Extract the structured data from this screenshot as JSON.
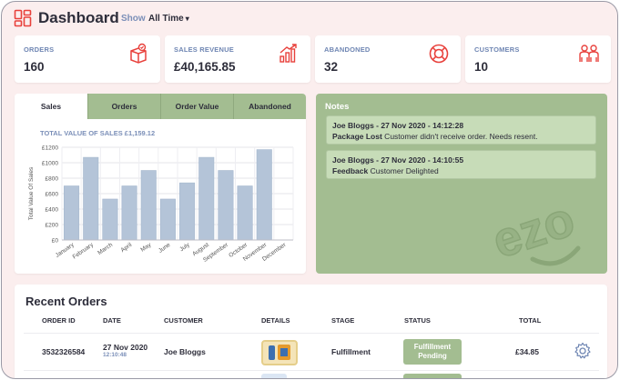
{
  "header": {
    "title": "Dashboard",
    "show_label": "Show",
    "show_value": "All Time",
    "caret": "▾",
    "logo_icon": "dashboard-grid-icon"
  },
  "stats": [
    {
      "label": "ORDERS",
      "value": "160",
      "icon": "shopping-bag-check-icon"
    },
    {
      "label": "SALES REVENUE",
      "value": "£40,165.85",
      "icon": "growth-bar-chart-icon"
    },
    {
      "label": "ABANDONED",
      "value": "32",
      "icon": "lifebuoy-icon"
    },
    {
      "label": "CUSTOMERS",
      "value": "10",
      "icon": "customers-group-icon"
    }
  ],
  "sales_tabs": [
    "Sales",
    "Orders",
    "Order Value",
    "Abandoned"
  ],
  "chart_data": {
    "type": "bar",
    "title": "TOTAL VALUE OF SALES £1,159.12",
    "ylabel": "Total Value Of Sales",
    "xlabel": "",
    "categories": [
      "January",
      "February",
      "March",
      "April",
      "May",
      "June",
      "July",
      "August",
      "September",
      "October",
      "November",
      "December"
    ],
    "values": [
      700,
      1070,
      530,
      700,
      900,
      530,
      740,
      1070,
      900,
      700,
      1170,
      0
    ],
    "yticks": [
      "£0",
      "£200",
      "£400",
      "£600",
      "£800",
      "£1000",
      "£1200"
    ],
    "ylim": [
      0,
      1200
    ],
    "grid": true,
    "bar_color": "#b4c4d8"
  },
  "notes": {
    "title": "Notes",
    "items": [
      {
        "header": "Joe Bloggs - 27 Nov 2020 - 14:12:28",
        "tag": "Package Lost",
        "text": " Customer didn't receive order. Needs resent."
      },
      {
        "header": "Joe Bloggs - 27 Nov 2020 - 14:10:55",
        "tag": "Feedback",
        "text": " Customer Delighted"
      }
    ],
    "watermark_text": "ezo"
  },
  "orders": {
    "title": "Recent Orders",
    "columns": [
      "ORDER ID",
      "DATE",
      "CUSTOMER",
      "DETAILS",
      "STAGE",
      "STATUS",
      "TOTAL"
    ],
    "rows": [
      {
        "order_id": "3532326584",
        "date": "27 Nov 2020",
        "time": "12:10:48",
        "customer": "Joe Bloggs",
        "stage": "Fulfillment",
        "status_line1": "Fulfillment",
        "status_line2": "Pending",
        "total": "£34.85"
      }
    ],
    "row_action_icon": "gear-icon"
  },
  "colors": {
    "accent_red": "#e8413c",
    "green": "#a3bd91",
    "label_blue": "#6f86b3",
    "bg_pink": "#fbeeee"
  }
}
